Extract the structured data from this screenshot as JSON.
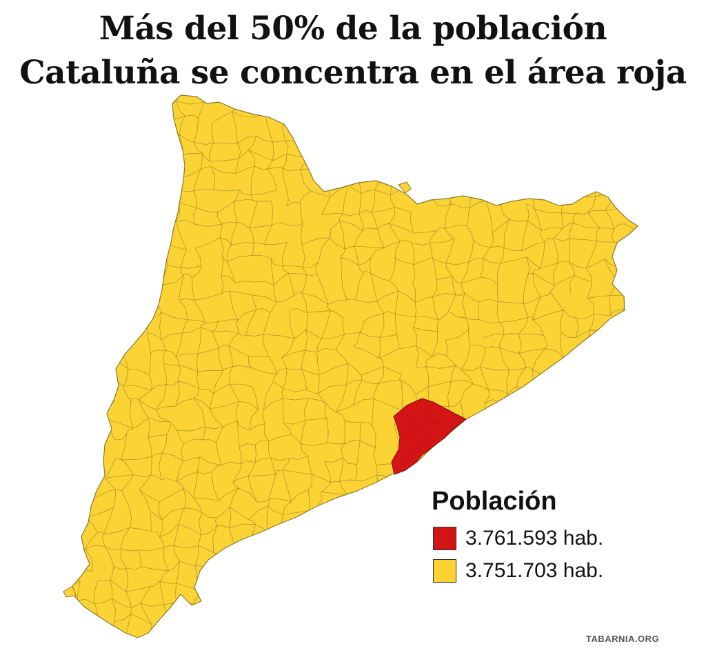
{
  "title": {
    "line1": "Más del 50% de la población",
    "line2": "Cataluña se concentra en el área roja"
  },
  "map": {
    "region": "Cataluña",
    "highlight_color": "#d41515",
    "base_color": "#fcd334",
    "border_color": "#8a7a2a"
  },
  "legend": {
    "title": "Población",
    "items": [
      {
        "label": "3.761.593 hab.",
        "color": "#d41515"
      },
      {
        "label": "3.751.703 hab.",
        "color": "#fcd334"
      }
    ]
  },
  "source": "TABARNIA.ORG"
}
